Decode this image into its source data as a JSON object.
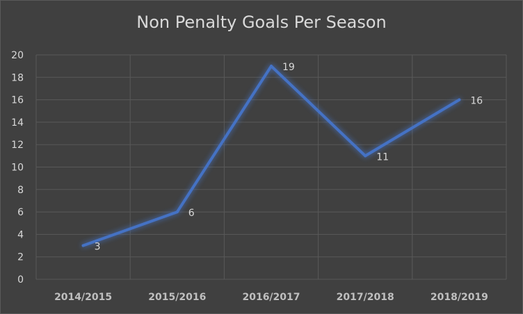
{
  "chart_data": {
    "type": "line",
    "title": "Non Penalty Goals Per Season",
    "xlabel": "",
    "ylabel": "",
    "categories": [
      "2014/2015",
      "2015/2016",
      "2016/2017",
      "2017/2018",
      "2018/2019"
    ],
    "series": [
      {
        "values": [
          3,
          6,
          19,
          11,
          16
        ],
        "color": "#4472c4"
      }
    ],
    "ylim": [
      0,
      20
    ],
    "yticks": [
      0,
      2,
      4,
      6,
      8,
      10,
      12,
      14,
      16,
      18,
      20
    ],
    "grid": true,
    "data_labels": true,
    "colors": {
      "background": "#404040",
      "grid": "#595959",
      "text": "#d9d9d9",
      "category_text": "#bfbfbf"
    }
  }
}
